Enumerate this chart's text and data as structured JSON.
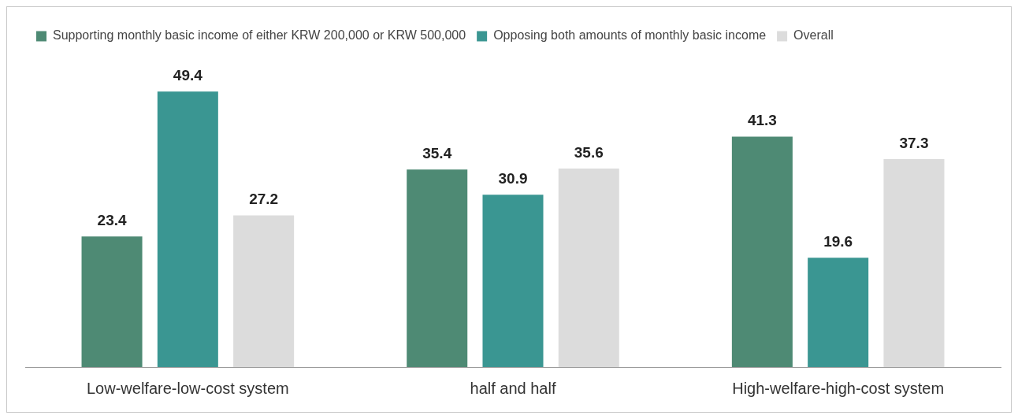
{
  "chart_data": {
    "type": "bar",
    "categories": [
      "Low-welfare-low-cost system",
      "half and half",
      "High-welfare-high-cost system"
    ],
    "series": [
      {
        "name": "Supporting monthly basic income of either KRW 200,000 or KRW 500,000",
        "color": "#4e8a74",
        "values": [
          23.4,
          35.4,
          41.3
        ]
      },
      {
        "name": "Opposing both amounts of monthly basic income",
        "color": "#3a9692",
        "values": [
          49.4,
          30.9,
          19.6
        ]
      },
      {
        "name": "Overall",
        "color": "#dcdcdc",
        "values": [
          27.2,
          35.6,
          37.3
        ]
      }
    ],
    "data_labels": true,
    "grid": false,
    "legend": "top left"
  }
}
